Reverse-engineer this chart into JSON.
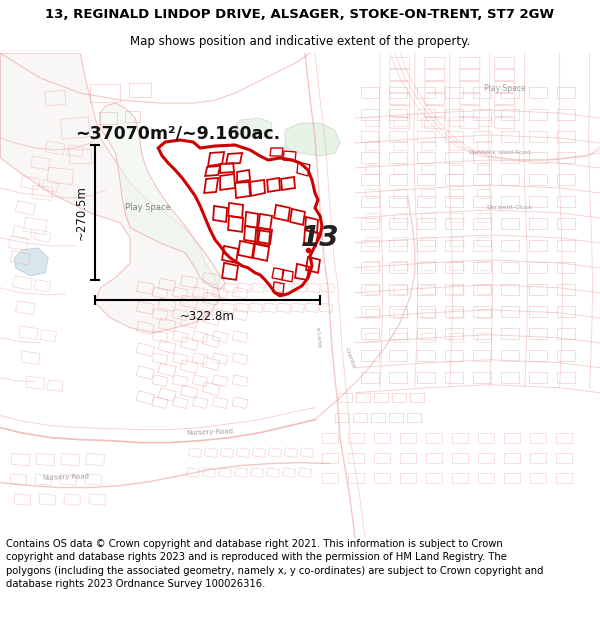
{
  "title": "13, REGINALD LINDOP DRIVE, ALSAGER, STOKE-ON-TRENT, ST7 2GW",
  "subtitle": "Map shows position and indicative extent of the property.",
  "title_fontsize": 9.5,
  "subtitle_fontsize": 8.5,
  "footer_text": "Contains OS data © Crown copyright and database right 2021. This information is subject to Crown copyright and database rights 2023 and is reproduced with the permission of HM Land Registry. The polygons (including the associated geometry, namely x, y co-ordinates) are subject to Crown copyright and database rights 2023 Ordnance Survey 100026316.",
  "footer_fontsize": 7.2,
  "map_bg": "#faf8f8",
  "street_color": "#e89090",
  "bld_color": "#e8a8a8",
  "property_color": "#cc0000",
  "dim_color": "#111111",
  "area_text": "~37070m²/~9.160ac.",
  "width_text": "~322.8m",
  "height_text": "~270.5m",
  "label13": "13",
  "playspace": "Play Space",
  "playspace2": "Play Space",
  "dunnock": "Dunnock’s‐fold·Road",
  "derwent": "Derwent·Close",
  "nursery_road": "Nursery·Road"
}
